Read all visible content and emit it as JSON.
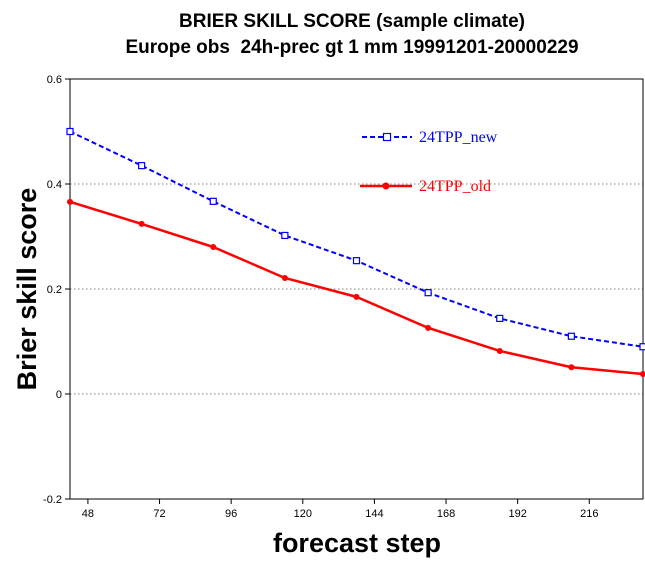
{
  "chart_data": {
    "type": "line",
    "title": "BRIER SKILL SCORE (sample climate)",
    "subtitle": "Europe obs  24h-prec gt 1 mm 19991201-20000229",
    "xlabel": "forecast step",
    "ylabel": "Brier skill score",
    "xlim": [
      42,
      234
    ],
    "ylim": [
      -0.2,
      0.6
    ],
    "xticks": [
      48,
      72,
      96,
      120,
      144,
      168,
      192,
      216
    ],
    "yticks": [
      -0.2,
      0,
      0.2,
      0.4,
      0.6
    ],
    "ytick_labels": [
      "-0.2",
      "0",
      "0.2",
      "0.4",
      "0.6"
    ],
    "grid": "horizontal dotted",
    "legend_position": "top-right, inside plot",
    "series": [
      {
        "name": "24TPP_new",
        "color": "#0000ff",
        "style": "dashed",
        "marker": "open-square",
        "x": [
          42,
          66,
          90,
          114,
          138,
          162,
          186,
          210,
          234
        ],
        "y": [
          0.5,
          0.435,
          0.367,
          0.302,
          0.254,
          0.193,
          0.144,
          0.11,
          0.09
        ]
      },
      {
        "name": "24TPP_old",
        "color": "#ff0000",
        "style": "solid",
        "marker": "filled-circle",
        "x": [
          42,
          66,
          90,
          114,
          138,
          162,
          186,
          210,
          234
        ],
        "y": [
          0.366,
          0.324,
          0.28,
          0.221,
          0.185,
          0.126,
          0.082,
          0.051,
          0.038
        ]
      }
    ]
  }
}
